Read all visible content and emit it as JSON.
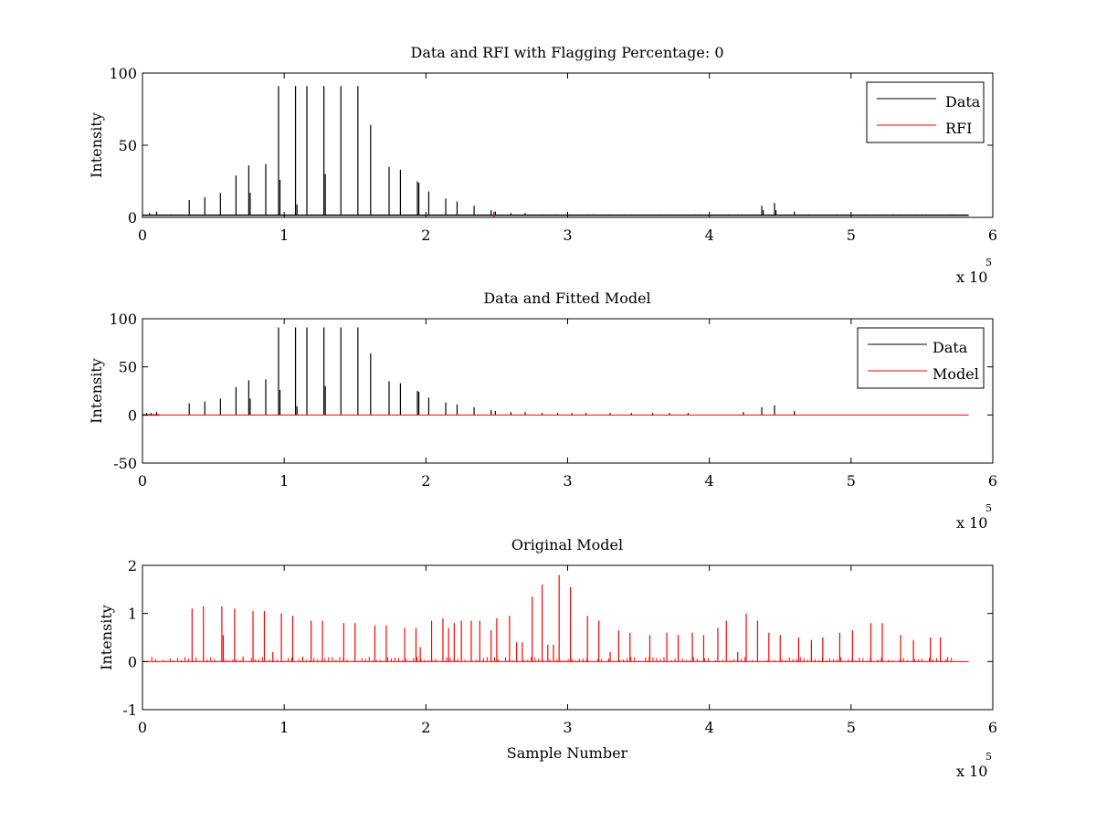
{
  "colors": {
    "data": "#000000",
    "rfi": "#ff0000",
    "model": "#ff0000",
    "axes": "#000000",
    "background": "#ffffff"
  },
  "chart_data": [
    {
      "type": "line",
      "title": "Data and RFI with Flagging Percentage: 0",
      "xlabel": "",
      "ylabel": "Intensity",
      "xlim": [
        0,
        600000
      ],
      "ylim": [
        0,
        100
      ],
      "xticks": [
        0,
        1,
        2,
        3,
        4,
        5,
        6
      ],
      "xtick_labels": [
        "0",
        "1",
        "2",
        "3",
        "4",
        "5",
        "6"
      ],
      "x_multiplier": {
        "base": "x 10",
        "exponent": "5"
      },
      "yticks": [
        0,
        50,
        100
      ],
      "ytick_labels": [
        "0",
        "50",
        "100"
      ],
      "legend": {
        "position": "top-right",
        "entries": [
          {
            "label": "Data",
            "color": "#000000"
          },
          {
            "label": "RFI",
            "color": "#ff0000"
          }
        ]
      },
      "grid": false,
      "series": [
        {
          "name": "Data",
          "color": "#000000",
          "baseline": 1.5,
          "spikes": [
            [
              5000,
              3
            ],
            [
              10000,
              4
            ],
            [
              20000,
              2
            ],
            [
              33000,
              12
            ],
            [
              44000,
              14
            ],
            [
              55000,
              17
            ],
            [
              66000,
              29
            ],
            [
              75000,
              36
            ],
            [
              76000,
              17
            ],
            [
              87000,
              37
            ],
            [
              96000,
              91
            ],
            [
              97000,
              26
            ],
            [
              108000,
              91
            ],
            [
              109000,
              9
            ],
            [
              116000,
              91
            ],
            [
              128000,
              91
            ],
            [
              129000,
              30
            ],
            [
              140000,
              91
            ],
            [
              152000,
              91
            ],
            [
              161000,
              64
            ],
            [
              174000,
              35
            ],
            [
              182000,
              33
            ],
            [
              194000,
              25
            ],
            [
              195000,
              24
            ],
            [
              202000,
              18
            ],
            [
              214000,
              13
            ],
            [
              222000,
              11
            ],
            [
              234000,
              8
            ],
            [
              246000,
              5
            ],
            [
              249000,
              4
            ],
            [
              260000,
              3
            ],
            [
              270000,
              3
            ],
            [
              282000,
              2
            ],
            [
              292000,
              2
            ],
            [
              302000,
              2
            ],
            [
              318000,
              2
            ],
            [
              340000,
              2
            ],
            [
              365000,
              2
            ],
            [
              390000,
              2
            ],
            [
              420000,
              2
            ],
            [
              437000,
              8
            ],
            [
              438000,
              5
            ],
            [
              446000,
              10
            ],
            [
              447000,
              5
            ],
            [
              460000,
              4
            ],
            [
              470000,
              2
            ],
            [
              490000,
              2
            ],
            [
              510000,
              2
            ],
            [
              530000,
              2
            ],
            [
              550000,
              2
            ],
            [
              570000,
              2
            ],
            [
              580000,
              2
            ]
          ],
          "noise_band": {
            "x_range": [
              280000,
              583000
            ],
            "level": 2
          }
        },
        {
          "name": "RFI",
          "color": "#ff0000",
          "baseline": 0,
          "spikes": [
            [
              248000,
              4
            ]
          ]
        }
      ]
    },
    {
      "type": "line",
      "title": "Data and Fitted Model",
      "xlabel": "",
      "ylabel": "Intensity",
      "xlim": [
        0,
        600000
      ],
      "ylim": [
        -50,
        100
      ],
      "xticks": [
        0,
        1,
        2,
        3,
        4,
        5,
        6
      ],
      "xtick_labels": [
        "0",
        "1",
        "2",
        "3",
        "4",
        "5",
        "6"
      ],
      "x_multiplier": {
        "base": "x 10",
        "exponent": "5"
      },
      "yticks": [
        -50,
        0,
        50,
        100
      ],
      "ytick_labels": [
        "-50",
        "0",
        "50",
        "100"
      ],
      "legend": {
        "position": "top-right",
        "entries": [
          {
            "label": "Data",
            "color": "#000000"
          },
          {
            "label": "Model",
            "color": "#ff0000"
          }
        ]
      },
      "grid": false,
      "series": [
        {
          "name": "Data",
          "color": "#000000",
          "baseline": 0,
          "spikes": [
            [
              3000,
              2
            ],
            [
              6000,
              2
            ],
            [
              10000,
              3
            ],
            [
              33000,
              12
            ],
            [
              44000,
              14
            ],
            [
              55000,
              17
            ],
            [
              66000,
              29
            ],
            [
              75000,
              36
            ],
            [
              76000,
              17
            ],
            [
              87000,
              37
            ],
            [
              96000,
              91
            ],
            [
              97000,
              26
            ],
            [
              108000,
              91
            ],
            [
              109000,
              9
            ],
            [
              116000,
              91
            ],
            [
              128000,
              91
            ],
            [
              129000,
              30
            ],
            [
              140000,
              91
            ],
            [
              152000,
              91
            ],
            [
              161000,
              64
            ],
            [
              174000,
              35
            ],
            [
              182000,
              33
            ],
            [
              194000,
              25
            ],
            [
              195000,
              24
            ],
            [
              202000,
              18
            ],
            [
              214000,
              13
            ],
            [
              222000,
              11
            ],
            [
              234000,
              8
            ],
            [
              246000,
              5
            ],
            [
              249000,
              4
            ],
            [
              260000,
              3
            ],
            [
              270000,
              3
            ],
            [
              282000,
              2
            ],
            [
              293000,
              2
            ],
            [
              303000,
              2
            ],
            [
              313000,
              2
            ],
            [
              330000,
              2
            ],
            [
              345000,
              2
            ],
            [
              360000,
              2
            ],
            [
              372000,
              2
            ],
            [
              385000,
              2
            ],
            [
              424000,
              3
            ],
            [
              437000,
              8
            ],
            [
              446000,
              10
            ],
            [
              460000,
              4
            ]
          ]
        },
        {
          "name": "Model",
          "color": "#ff0000",
          "baseline": 0,
          "line_range": [
            0,
            583000
          ]
        }
      ]
    },
    {
      "type": "line",
      "title": "Original Model",
      "xlabel": "Sample Number",
      "ylabel": "Intensity",
      "xlim": [
        0,
        600000
      ],
      "ylim": [
        -1,
        2
      ],
      "xticks": [
        0,
        1,
        2,
        3,
        4,
        5,
        6
      ],
      "xtick_labels": [
        "0",
        "1",
        "2",
        "3",
        "4",
        "5",
        "6"
      ],
      "x_multiplier": {
        "base": "x 10",
        "exponent": "5"
      },
      "yticks": [
        -1,
        0,
        1,
        2
      ],
      "ytick_labels": [
        "-1",
        "0",
        "1",
        "2"
      ],
      "grid": false,
      "series": [
        {
          "color": "#ff0000",
          "baseline": 0,
          "line_range": [
            0,
            583000
          ],
          "spikes": [
            [
              35000,
              1.1
            ],
            [
              43000,
              1.15
            ],
            [
              56000,
              1.15
            ],
            [
              57000,
              0.55
            ],
            [
              65000,
              1.1
            ],
            [
              71000,
              0.1
            ],
            [
              78000,
              1.05
            ],
            [
              86000,
              1.05
            ],
            [
              92000,
              0.2
            ],
            [
              98000,
              1.0
            ],
            [
              106000,
              0.95
            ],
            [
              113000,
              0.1
            ],
            [
              119000,
              0.85
            ],
            [
              127000,
              0.85
            ],
            [
              142000,
              0.8
            ],
            [
              150000,
              0.8
            ],
            [
              164000,
              0.75
            ],
            [
              172000,
              0.75
            ],
            [
              185000,
              0.7
            ],
            [
              193000,
              0.7
            ],
            [
              196000,
              0.3
            ],
            [
              204000,
              0.85
            ],
            [
              212000,
              0.9
            ],
            [
              216000,
              0.7
            ],
            [
              220000,
              0.8
            ],
            [
              225000,
              0.85
            ],
            [
              232000,
              0.85
            ],
            [
              238000,
              0.85
            ],
            [
              246000,
              0.65
            ],
            [
              250000,
              0.9
            ],
            [
              259000,
              0.95
            ],
            [
              264000,
              0.4
            ],
            [
              268000,
              0.4
            ],
            [
              275000,
              1.35
            ],
            [
              282000,
              1.6
            ],
            [
              286000,
              0.35
            ],
            [
              290000,
              0.35
            ],
            [
              294000,
              1.8
            ],
            [
              302000,
              1.55
            ],
            [
              314000,
              0.95
            ],
            [
              322000,
              0.85
            ],
            [
              330000,
              0.2
            ],
            [
              336000,
              0.65
            ],
            [
              344000,
              0.6
            ],
            [
              358000,
              0.55
            ],
            [
              370000,
              0.6
            ],
            [
              378000,
              0.55
            ],
            [
              388000,
              0.6
            ],
            [
              396000,
              0.55
            ],
            [
              406000,
              0.7
            ],
            [
              412000,
              0.85
            ],
            [
              420000,
              0.2
            ],
            [
              426000,
              1.0
            ],
            [
              434000,
              0.85
            ],
            [
              442000,
              0.6
            ],
            [
              450000,
              0.55
            ],
            [
              463000,
              0.5
            ],
            [
              472000,
              0.45
            ],
            [
              480000,
              0.5
            ],
            [
              492000,
              0.6
            ],
            [
              501000,
              0.65
            ],
            [
              514000,
              0.8
            ],
            [
              522000,
              0.8
            ],
            [
              535000,
              0.55
            ],
            [
              544000,
              0.45
            ],
            [
              556000,
              0.5
            ],
            [
              563000,
              0.5
            ],
            [
              567000,
              0.05
            ]
          ],
          "small_spikes": {
            "x_range": [
              4000,
              573000
            ],
            "step": 2600,
            "max": 0.1
          }
        }
      ]
    }
  ]
}
